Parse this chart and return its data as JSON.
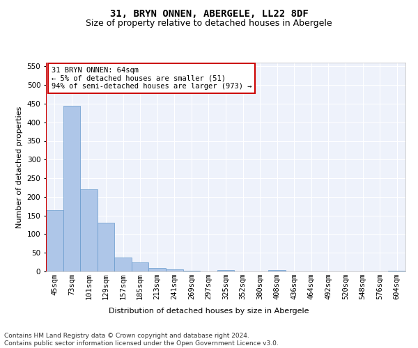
{
  "title": "31, BRYN ONNEN, ABERGELE, LL22 8DF",
  "subtitle": "Size of property relative to detached houses in Abergele",
  "xlabel": "Distribution of detached houses by size in Abergele",
  "ylabel": "Number of detached properties",
  "categories": [
    "45sqm",
    "73sqm",
    "101sqm",
    "129sqm",
    "157sqm",
    "185sqm",
    "213sqm",
    "241sqm",
    "269sqm",
    "297sqm",
    "325sqm",
    "352sqm",
    "380sqm",
    "408sqm",
    "436sqm",
    "464sqm",
    "492sqm",
    "520sqm",
    "548sqm",
    "576sqm",
    "604sqm"
  ],
  "values": [
    165,
    445,
    220,
    130,
    37,
    25,
    9,
    5,
    1,
    0,
    3,
    0,
    0,
    3,
    0,
    0,
    0,
    0,
    0,
    0,
    1
  ],
  "bar_color": "#aec6e8",
  "bar_edge_color": "#6699cc",
  "marker_color": "#cc0000",
  "annotation_text": "31 BRYN ONNEN: 64sqm\n← 5% of detached houses are smaller (51)\n94% of semi-detached houses are larger (973) →",
  "annotation_box_color": "#ffffff",
  "annotation_box_edge_color": "#cc0000",
  "footer_text": "Contains HM Land Registry data © Crown copyright and database right 2024.\nContains public sector information licensed under the Open Government Licence v3.0.",
  "ylim": [
    0,
    560
  ],
  "yticks": [
    0,
    50,
    100,
    150,
    200,
    250,
    300,
    350,
    400,
    450,
    500,
    550
  ],
  "background_color": "#eef2fb",
  "grid_color": "#ffffff",
  "title_fontsize": 10,
  "subtitle_fontsize": 9,
  "axis_label_fontsize": 8,
  "tick_fontsize": 7.5,
  "annotation_fontsize": 7.5,
  "footer_fontsize": 6.5
}
